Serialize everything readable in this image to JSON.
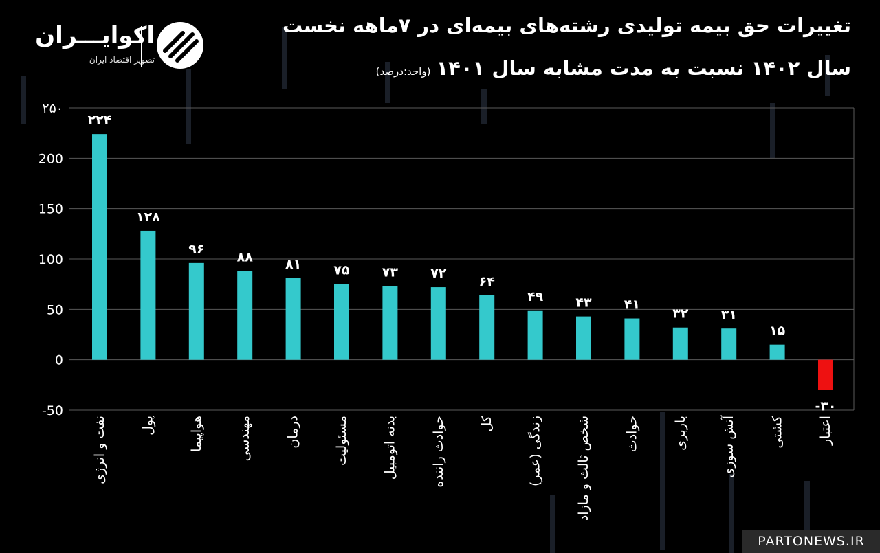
{
  "title": {
    "line1": "تغییرات حق بیمه تولیدی رشته‌های بیمه‌ای در ۷ماهه نخست",
    "line2": "سال ۱۴۰۲ نسبت به مدت مشابه سال ۱۴۰۱",
    "unit": "(واحد:درصد)"
  },
  "logo": {
    "name": "اکوایـــران",
    "tagline": "تصویر اقتصاد ایران"
  },
  "watermark": "PARTONEWS.IR",
  "colors": {
    "background": "#000000",
    "positive_bar": "#34c9cc",
    "negative_bar": "#ee1111",
    "grid": "#5a5a5a",
    "text": "#ffffff"
  },
  "chart_data": {
    "type": "bar",
    "categories": [
      "نفت و انرژی",
      "پول",
      "هواپیما",
      "مهندسی",
      "درمان",
      "مسئولیت",
      "بدنه اتومبیل",
      "حوادث راننده",
      "کل",
      "زندگی (عمر)",
      "شخص ثالث و مازاد",
      "حوادث",
      "باربری",
      "آتش سوزی",
      "کشتی",
      "اعتبار"
    ],
    "values": [
      224,
      128,
      96,
      88,
      81,
      75,
      73,
      72,
      64,
      49,
      43,
      41,
      32,
      31,
      15,
      -30
    ],
    "value_labels": [
      "۲۲۴",
      "۱۲۸",
      "۹۶",
      "۸۸",
      "۸۱",
      "۷۵",
      "۷۳",
      "۷۲",
      "۶۴",
      "۴۹",
      "۴۳",
      "۴۱",
      "۳۲",
      "۳۱",
      "۱۵",
      "-۳۰"
    ],
    "yticks": [
      250,
      200,
      150,
      100,
      50,
      0,
      -50
    ],
    "ytick_labels": [
      "۲۵۰",
      "200",
      "150",
      "100",
      "50",
      "0",
      "-50"
    ],
    "ylim": [
      -50,
      250
    ],
    "grid": true,
    "legend": "none"
  }
}
